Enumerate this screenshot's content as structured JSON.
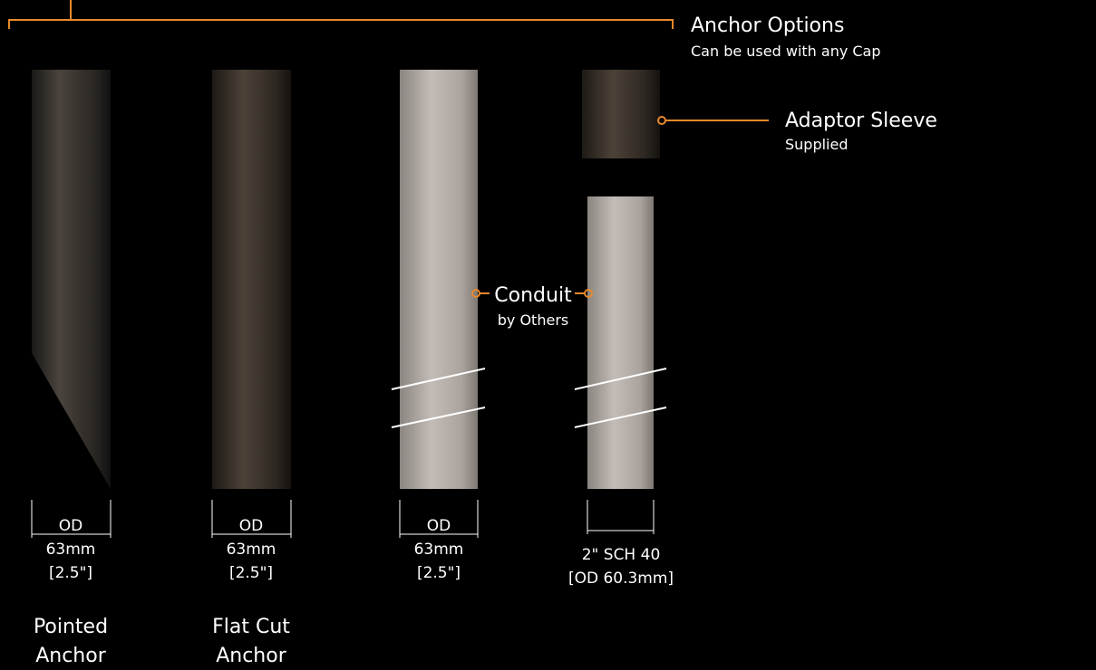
{
  "header": {
    "title": "Anchor Options",
    "subtitle": "Can be used with any Cap"
  },
  "callouts": [
    {
      "label": "Adaptor Sleeve",
      "note": "Supplied"
    },
    {
      "label": "Conduit",
      "note": "by Others"
    }
  ],
  "items": [
    {
      "dimension": [
        "OD",
        "63mm",
        "[2.5\"]"
      ],
      "name": [
        "Pointed",
        "Anchor"
      ]
    },
    {
      "dimension": [
        "OD",
        "63mm",
        "[2.5\"]"
      ],
      "name": [
        "Flat Cut",
        "Anchor"
      ]
    },
    {
      "dimension": [
        "OD",
        "63mm",
        "[2.5\"]"
      ]
    },
    {
      "dimension": [
        "2\" SCH 40",
        "[OD 60.3mm]"
      ]
    }
  ]
}
